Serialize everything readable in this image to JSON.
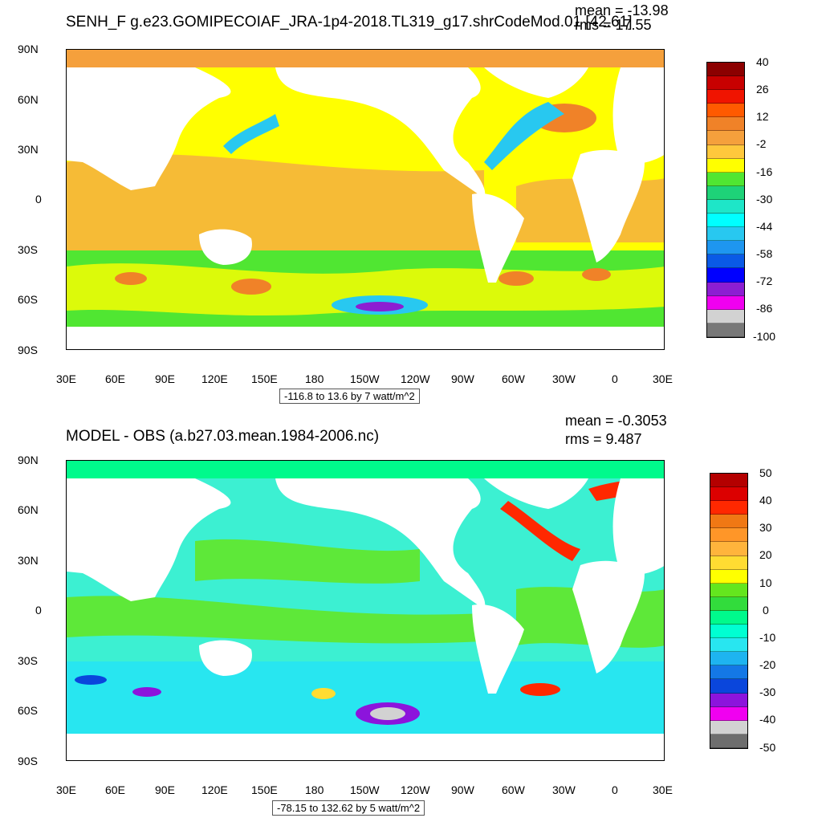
{
  "panels": [
    {
      "title": "SENH_F g.e23.GOMIPECOIAF_JRA-1p4-2018.TL319_g17.shrCodeMod.01 [42.61]",
      "mean": "mean = -13.98",
      "rms": "rms = 17.55",
      "subtitle": "-116.8 to 13.6 by 7 watt/m^2",
      "lat_ticks": [
        "90N",
        "60N",
        "30N",
        "0",
        "30S",
        "60S",
        "90S"
      ],
      "lon_ticks": [
        "30E",
        "60E",
        "90E",
        "120E",
        "150E",
        "180",
        "150W",
        "120W",
        "90W",
        "60W",
        "30W",
        "0",
        "30E"
      ],
      "colorbar": {
        "labels": [
          "40",
          "26",
          "12",
          "-2",
          "-16",
          "-30",
          "-44",
          "-58",
          "-72",
          "-86",
          "-100"
        ],
        "colors": [
          "#8c0000",
          "#c80000",
          "#f01400",
          "#ff5a00",
          "#f08228",
          "#f5a03c",
          "#ffc83c",
          "#ffff00",
          "#50e632",
          "#1ed278",
          "#1ee6c8",
          "#00ffff",
          "#28c8f0",
          "#1e96f0",
          "#0a5ae6",
          "#0000ff",
          "#8c1ed2",
          "#f000f0",
          "#d2d2d2",
          "#787878"
        ]
      },
      "ocean_base": "#ffff00"
    },
    {
      "title": "MODEL - OBS (a.b27.03.mean.1984-2006.nc)",
      "mean": "mean = -0.3053",
      "rms": "rms = 9.487",
      "subtitle": "-78.15 to 132.62 by 5 watt/m^2",
      "lat_ticks": [
        "90N",
        "60N",
        "30N",
        "0",
        "30S",
        "60S",
        "90S"
      ],
      "lon_ticks": [
        "30E",
        "60E",
        "90E",
        "120E",
        "150E",
        "180",
        "150W",
        "120W",
        "90W",
        "60W",
        "30W",
        "0",
        "30E"
      ],
      "colorbar": {
        "labels": [
          "50",
          "40",
          "30",
          "20",
          "10",
          "0",
          "-10",
          "-20",
          "-30",
          "-40",
          "-50"
        ],
        "colors": [
          "#b40000",
          "#dc0000",
          "#ff2800",
          "#f07814",
          "#ff9628",
          "#ffb43c",
          "#ffdc32",
          "#ffff00",
          "#64e61e",
          "#32dc3c",
          "#00fa8c",
          "#00ffd2",
          "#28e6f0",
          "#1eb4f0",
          "#1478e6",
          "#0a46dc",
          "#8c14dc",
          "#f000f0",
          "#d2d2d2",
          "#6e6e6e"
        ]
      },
      "ocean_base": "#3cf0d2"
    }
  ]
}
